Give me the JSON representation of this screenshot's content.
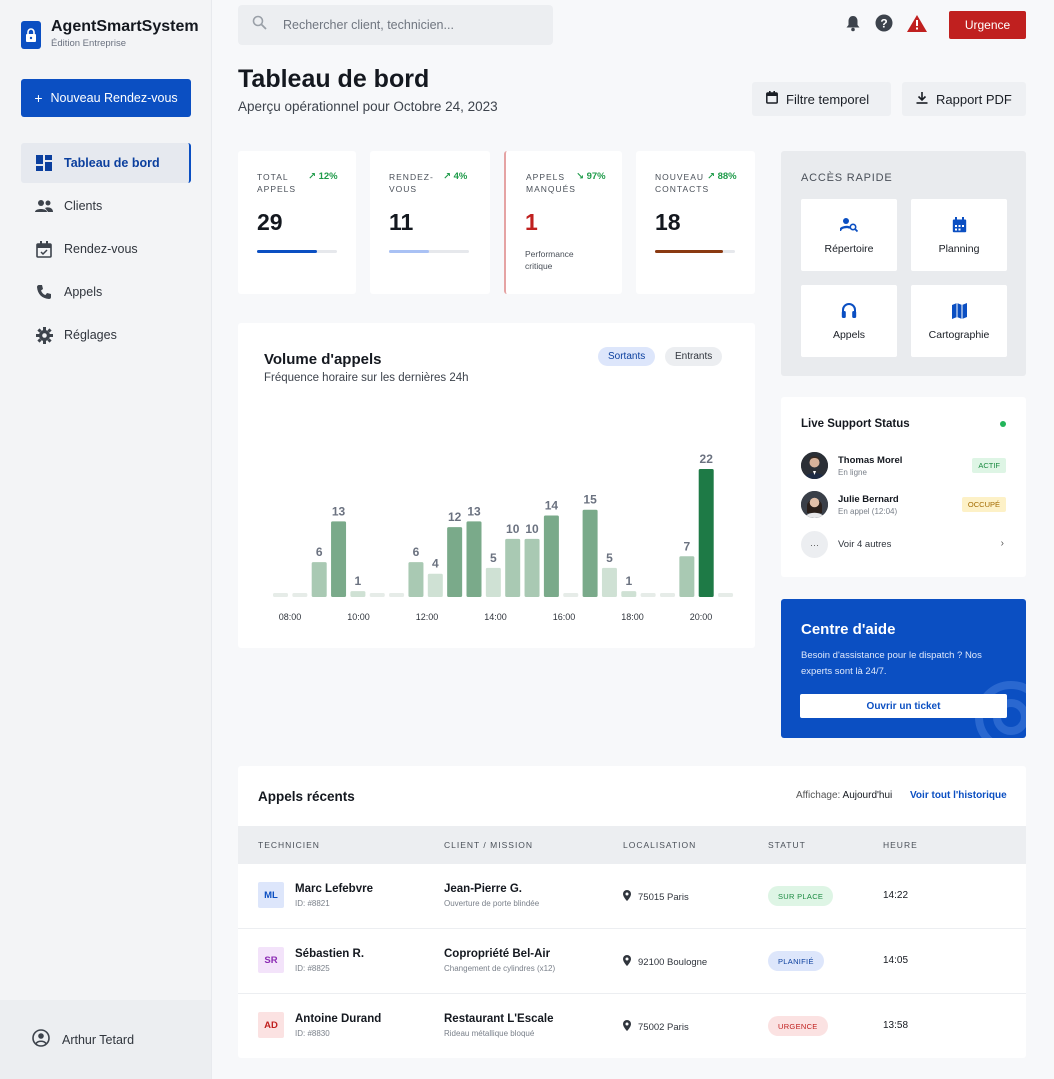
{
  "brand": {
    "name": "AgentSmartSystem",
    "sub": "Édition Entreprise"
  },
  "sidebar": {
    "new_button": "Nouveau Rendez-vous",
    "items": [
      {
        "label": "Tableau de bord",
        "icon": "dashboard-icon"
      },
      {
        "label": "Clients",
        "icon": "people-icon"
      },
      {
        "label": "Rendez-vous",
        "icon": "calendar-icon"
      },
      {
        "label": "Appels",
        "icon": "phone-icon"
      },
      {
        "label": "Réglages",
        "icon": "gear-icon"
      }
    ],
    "user": "Arthur Tetard"
  },
  "topbar": {
    "search_placeholder": "Rechercher client, technicien...",
    "urgence": "Urgence"
  },
  "header": {
    "title": "Tableau de bord",
    "subtitle": "Aperçu opérationnel pour Octobre 24, 2023",
    "filter_btn": "Filtre temporel",
    "pdf_btn": "Rapport PDF"
  },
  "kpis": [
    {
      "label": "TOTAL APPELS",
      "trend": "12%",
      "value": "29",
      "progress": 0.75,
      "color": "#0b4fc2"
    },
    {
      "label": "RENDEZ-VOUS",
      "trend": "4%",
      "value": "11",
      "progress": 0.5,
      "color": "#a9c1f4"
    },
    {
      "label": "APPELS MANQUÉS",
      "trend": "97%",
      "value": "1",
      "note": "Performance critique",
      "color": "#c0201f"
    },
    {
      "label": "NOUVEAU CONTACTS",
      "trend": "88%",
      "value": "18",
      "progress": 0.85,
      "color": "#8a3a12"
    }
  ],
  "quick": {
    "title": "ACCÈS RAPIDE",
    "tiles": [
      {
        "label": "Répertoire",
        "icon": "person-search-icon"
      },
      {
        "label": "Planning",
        "icon": "calendar-icon"
      },
      {
        "label": "Appels",
        "icon": "headset-icon"
      },
      {
        "label": "Cartographie",
        "icon": "map-icon"
      }
    ]
  },
  "chart": {
    "title": "Volume d'appels",
    "subtitle": "Fréquence horaire sur les dernières 24h",
    "pill_out": "Sortants",
    "pill_in": "Entrants"
  },
  "chart_data": {
    "type": "bar",
    "values": [
      0,
      0,
      6,
      13,
      1,
      0,
      0,
      6,
      4,
      12,
      13,
      5,
      10,
      10,
      14,
      0,
      15,
      5,
      1,
      0,
      0,
      7,
      22,
      0
    ],
    "tick_labels": [
      "08:00",
      "10:00",
      "12:00",
      "14:00",
      "16:00",
      "18:00",
      "20:00"
    ],
    "ylim": [
      0,
      22
    ]
  },
  "live": {
    "title": "Live Support Status",
    "agents": [
      {
        "name": "Thomas Morel",
        "status": "En ligne",
        "badge": "ACTIF"
      },
      {
        "name": "Julie Bernard",
        "status": "En appel (12:04)",
        "badge": "OCCUPÉ"
      }
    ],
    "more_dots": "···",
    "more": "Voir 4 autres",
    "more_chevron": "›"
  },
  "help": {
    "title": "Centre d'aide",
    "text": "Besoin d'assistance pour le dispatch ? Nos experts sont là 24/7.",
    "button": "Ouvrir un ticket"
  },
  "recent": {
    "title": "Appels récents",
    "affichage_label": "Affichage:",
    "affichage_value": "Aujourd'hui",
    "link": "Voir tout l'historique",
    "headers": [
      "TECHNICIEN",
      "CLIENT / MISSION",
      "LOCALISATION",
      "STATUT",
      "HEURE"
    ],
    "rows": [
      {
        "initials": "ML",
        "tech": "Marc Lefebvre",
        "id": "ID: #8821",
        "client": "Jean-Pierre G.",
        "mission": "Ouverture de porte blindée",
        "loc": "75015 Paris",
        "status": "SUR PLACE",
        "time": "14:22"
      },
      {
        "initials": "SR",
        "tech": "Sébastien R.",
        "id": "ID: #8825",
        "client": "Copropriété Bel-Air",
        "mission": "Changement de cylindres (x12)",
        "loc": "92100 Boulogne",
        "status": "PLANIFIÉ",
        "time": "14:05"
      },
      {
        "initials": "AD",
        "tech": "Antoine Durand",
        "id": "ID: #8830",
        "client": "Restaurant L'Escale",
        "mission": "Rideau métallique bloqué",
        "loc": "75002 Paris",
        "status": "URGENCE",
        "time": "13:58"
      }
    ]
  }
}
